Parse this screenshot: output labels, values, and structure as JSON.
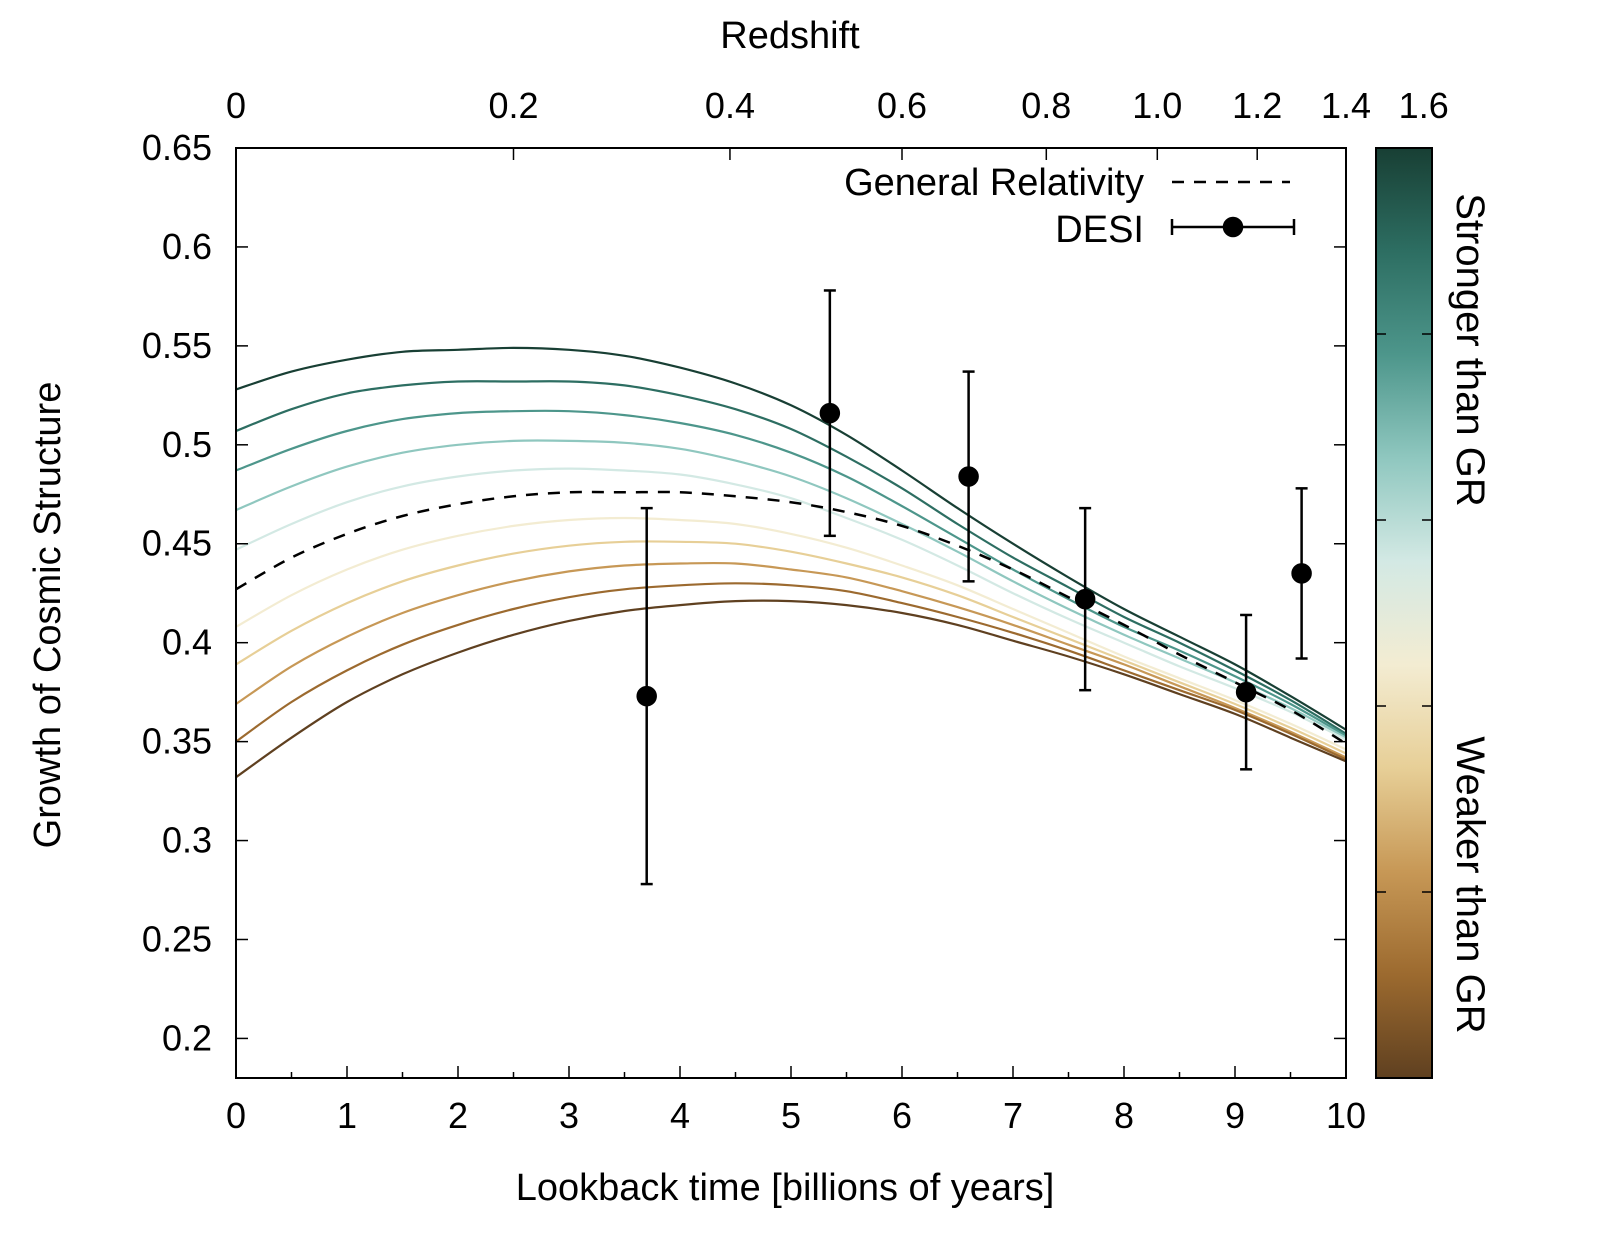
{
  "chart_data": {
    "type": "line",
    "xlabel": "Lookback time [billions of years]",
    "ylabel": "Growth of Cosmic Structure",
    "x2label": "Redshift",
    "xlim": [
      0,
      10
    ],
    "ylim": [
      0.18,
      0.65
    ],
    "x_axis_scale": "lookback time (nonlinear in redshift)",
    "x_ticks": [
      0,
      1,
      2,
      3,
      4,
      5,
      6,
      7,
      8,
      9,
      10
    ],
    "y_ticks": [
      "0.2",
      "0.25",
      "0.3",
      "0.35",
      "0.4",
      "0.45",
      "0.5",
      "0.55",
      "0.6",
      "0.65"
    ],
    "x2_ticks": [
      {
        "label": "0",
        "t": 0
      },
      {
        "label": "0.2",
        "t": 2.5
      },
      {
        "label": "0.4",
        "t": 4.45
      },
      {
        "label": "0.6",
        "t": 6.0
      },
      {
        "label": "0.8",
        "t": 7.3
      },
      {
        "label": "1.0",
        "t": 8.3
      },
      {
        "label": "1.2",
        "t": 9.2
      },
      {
        "label": "1.4",
        "t": 10.0
      },
      {
        "label": "1.6",
        "t": 10.7
      }
    ],
    "x_minor_ticks": [
      0.5,
      1.5,
      2.5,
      3.5,
      4.5,
      5.5,
      6.5,
      7.5,
      8.5,
      9.5
    ],
    "grid": false,
    "legend": {
      "position": "top-right",
      "entries": [
        {
          "label": "General Relativity",
          "style": "dashed"
        },
        {
          "label": "DESI",
          "style": "points with error bars"
        }
      ]
    },
    "colorbar": {
      "position": "right",
      "top_label": "Stronger than GR",
      "bottom_label": "Weaker than GR",
      "colors": [
        "#183f34",
        "#2d6e62",
        "#4d968b",
        "#8fc7bf",
        "#d3e9e4",
        "#f3ecd2",
        "#e7cf97",
        "#c79856",
        "#9c6a2f",
        "#5f4020"
      ]
    },
    "series": [
      {
        "name": "General Relativity",
        "style": "dashed",
        "color": "#000000",
        "x": [
          0,
          0.5,
          1,
          1.5,
          2,
          2.5,
          3,
          3.5,
          4,
          4.5,
          5,
          5.5,
          6,
          6.5,
          7,
          7.5,
          8,
          8.5,
          9,
          9.5,
          10
        ],
        "y": [
          0.427,
          0.443,
          0.455,
          0.464,
          0.47,
          0.474,
          0.476,
          0.476,
          0.476,
          0.474,
          0.471,
          0.466,
          0.459,
          0.449,
          0.437,
          0.423,
          0.409,
          0.394,
          0.38,
          0.366,
          0.349
        ]
      },
      {
        "color": "#183f34",
        "x": [
          0,
          0.5,
          1,
          1.5,
          2,
          2.5,
          3,
          3.5,
          4,
          4.5,
          5,
          5.5,
          6,
          6.5,
          7,
          7.5,
          8,
          8.5,
          9,
          9.5,
          10
        ],
        "y": [
          0.528,
          0.537,
          0.543,
          0.547,
          0.548,
          0.549,
          0.548,
          0.545,
          0.539,
          0.531,
          0.52,
          0.505,
          0.487,
          0.468,
          0.45,
          0.433,
          0.417,
          0.403,
          0.389,
          0.373,
          0.356
        ]
      },
      {
        "color": "#2d6e62",
        "x": [
          0,
          0.5,
          1,
          1.5,
          2,
          2.5,
          3,
          3.5,
          4,
          4.5,
          5,
          5.5,
          6,
          6.5,
          7,
          7.5,
          8,
          8.5,
          9,
          9.5,
          10
        ],
        "y": [
          0.507,
          0.518,
          0.526,
          0.53,
          0.532,
          0.532,
          0.532,
          0.53,
          0.525,
          0.518,
          0.508,
          0.494,
          0.478,
          0.46,
          0.443,
          0.428,
          0.413,
          0.4,
          0.386,
          0.371,
          0.354
        ]
      },
      {
        "color": "#4d968b",
        "x": [
          0,
          0.5,
          1,
          1.5,
          2,
          2.5,
          3,
          3.5,
          4,
          4.5,
          5,
          5.5,
          6,
          6.5,
          7,
          7.5,
          8,
          8.5,
          9,
          9.5,
          10
        ],
        "y": [
          0.487,
          0.498,
          0.507,
          0.513,
          0.516,
          0.517,
          0.517,
          0.515,
          0.511,
          0.505,
          0.496,
          0.484,
          0.469,
          0.453,
          0.437,
          0.422,
          0.408,
          0.396,
          0.383,
          0.369,
          0.353
        ]
      },
      {
        "color": "#8fc7bf",
        "x": [
          0,
          0.5,
          1,
          1.5,
          2,
          2.5,
          3,
          3.5,
          4,
          4.5,
          5,
          5.5,
          6,
          6.5,
          7,
          7.5,
          8,
          8.5,
          9,
          9.5,
          10
        ],
        "y": [
          0.467,
          0.479,
          0.489,
          0.496,
          0.5,
          0.502,
          0.502,
          0.501,
          0.498,
          0.492,
          0.484,
          0.473,
          0.46,
          0.446,
          0.431,
          0.417,
          0.404,
          0.392,
          0.38,
          0.367,
          0.352
        ]
      },
      {
        "color": "#d3e9e4",
        "x": [
          0,
          0.5,
          1,
          1.5,
          2,
          2.5,
          3,
          3.5,
          4,
          4.5,
          5,
          5.5,
          6,
          6.5,
          7,
          7.5,
          8,
          8.5,
          9,
          9.5,
          10
        ],
        "y": [
          0.447,
          0.46,
          0.471,
          0.479,
          0.484,
          0.487,
          0.488,
          0.487,
          0.485,
          0.48,
          0.473,
          0.463,
          0.452,
          0.439,
          0.425,
          0.412,
          0.4,
          0.388,
          0.377,
          0.365,
          0.351
        ]
      },
      {
        "color": "#f3ecd2",
        "x": [
          0,
          0.5,
          1,
          1.5,
          2,
          2.5,
          3,
          3.5,
          4,
          4.5,
          5,
          5.5,
          6,
          6.5,
          7,
          7.5,
          8,
          8.5,
          9,
          9.5,
          10
        ],
        "y": [
          0.408,
          0.424,
          0.437,
          0.447,
          0.454,
          0.459,
          0.462,
          0.463,
          0.462,
          0.46,
          0.455,
          0.448,
          0.439,
          0.429,
          0.417,
          0.405,
          0.393,
          0.382,
          0.371,
          0.359,
          0.346
        ]
      },
      {
        "color": "#e7cf97",
        "x": [
          0,
          0.5,
          1,
          1.5,
          2,
          2.5,
          3,
          3.5,
          4,
          4.5,
          5,
          5.5,
          6,
          6.5,
          7,
          7.5,
          8,
          8.5,
          9,
          9.5,
          10
        ],
        "y": [
          0.389,
          0.406,
          0.42,
          0.431,
          0.439,
          0.445,
          0.449,
          0.451,
          0.451,
          0.45,
          0.446,
          0.44,
          0.433,
          0.424,
          0.413,
          0.402,
          0.391,
          0.38,
          0.369,
          0.357,
          0.344
        ]
      },
      {
        "color": "#c79856",
        "x": [
          0,
          0.5,
          1,
          1.5,
          2,
          2.5,
          3,
          3.5,
          4,
          4.5,
          5,
          5.5,
          6,
          6.5,
          7,
          7.5,
          8,
          8.5,
          9,
          9.5,
          10
        ],
        "y": [
          0.369,
          0.388,
          0.403,
          0.415,
          0.424,
          0.431,
          0.436,
          0.439,
          0.44,
          0.44,
          0.437,
          0.433,
          0.426,
          0.418,
          0.409,
          0.399,
          0.389,
          0.378,
          0.367,
          0.355,
          0.342
        ]
      },
      {
        "color": "#9c6a2f",
        "x": [
          0,
          0.5,
          1,
          1.5,
          2,
          2.5,
          3,
          3.5,
          4,
          4.5,
          5,
          5.5,
          6,
          6.5,
          7,
          7.5,
          8,
          8.5,
          9,
          9.5,
          10
        ],
        "y": [
          0.35,
          0.37,
          0.386,
          0.399,
          0.409,
          0.417,
          0.423,
          0.427,
          0.429,
          0.43,
          0.429,
          0.426,
          0.42,
          0.413,
          0.405,
          0.396,
          0.386,
          0.376,
          0.366,
          0.354,
          0.341
        ]
      },
      {
        "color": "#5f4020",
        "x": [
          0,
          0.5,
          1,
          1.5,
          2,
          2.5,
          3,
          3.5,
          4,
          4.5,
          5,
          5.5,
          6,
          6.5,
          7,
          7.5,
          8,
          8.5,
          9,
          9.5,
          10
        ],
        "y": [
          0.332,
          0.352,
          0.37,
          0.384,
          0.395,
          0.404,
          0.411,
          0.416,
          0.419,
          0.421,
          0.421,
          0.419,
          0.415,
          0.409,
          0.401,
          0.393,
          0.384,
          0.374,
          0.364,
          0.352,
          0.34
        ]
      }
    ],
    "points": {
      "name": "DESI",
      "x": [
        3.7,
        5.35,
        6.6,
        7.65,
        9.1,
        9.6
      ],
      "y": [
        0.373,
        0.516,
        0.484,
        0.422,
        0.375,
        0.435
      ],
      "err": [
        0.095,
        0.062,
        0.053,
        0.046,
        0.039,
        0.043
      ]
    }
  }
}
